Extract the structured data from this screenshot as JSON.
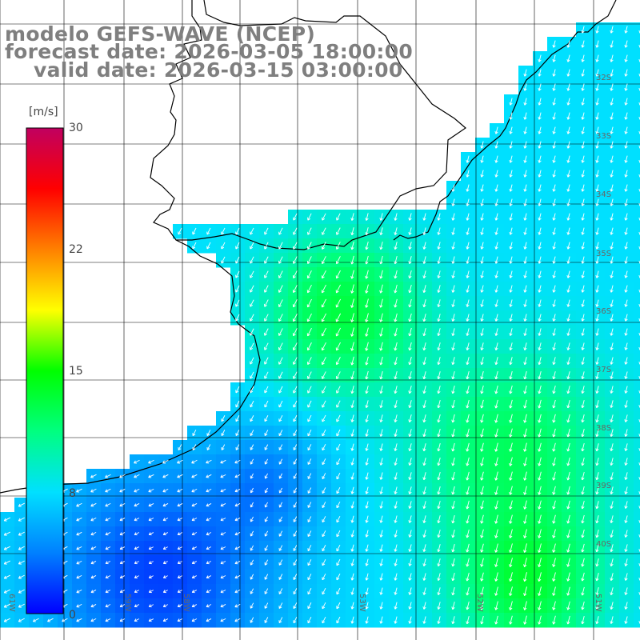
{
  "title": {
    "line1": "modelo GEFS-WAVE (NCEP)",
    "line2": "forecast date: 2026-03-05 18:00:00",
    "line3": "valid date: 2026-03-15 03:00:00"
  },
  "colorbar": {
    "unit": "[m/s]",
    "ticks": [
      "30",
      "22",
      "15",
      "8",
      "0"
    ],
    "min": 0,
    "max": 30,
    "colors": [
      "#0000ff",
      "#0080ff",
      "#00e0ff",
      "#00ff80",
      "#00ff00",
      "#ffff00",
      "#ff8000",
      "#ff0000",
      "#c00060"
    ]
  },
  "map": {
    "latitude_labels": [
      "32S",
      "33S",
      "34S",
      "35S",
      "36S",
      "37S",
      "38S",
      "39S",
      "40S"
    ],
    "longitude_labels": [
      "61W",
      "59W",
      "58W",
      "53W",
      "52W",
      "51W"
    ],
    "land_color": "#ffffff",
    "grid_color": "#000000",
    "vector_color": "#ffffff"
  }
}
